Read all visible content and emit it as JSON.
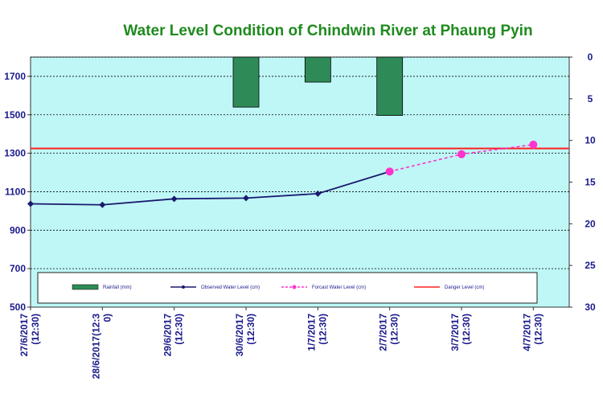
{
  "chart_data": {
    "title": "Water Level Condition  of Chindwin River at Phaung Pyin",
    "type": "line",
    "categories": [
      "27/6/2017\n(12:30)",
      "28/6/2017(12:3\n0)",
      "29/6/2017\n(12:30)",
      "30/6/2017\n(12:30)",
      "1/7/2017\n(12:30)",
      "2/7/2017\n(12:30)",
      "3/7/2017\n(12:30)",
      "4/7/2017\n(12:30)"
    ],
    "y_left": {
      "ylim": [
        500,
        1800
      ],
      "ticks": [
        500,
        700,
        900,
        1100,
        1300,
        1500,
        1700
      ]
    },
    "y_right": {
      "ylim": [
        0,
        30
      ],
      "ticks": [
        0,
        5,
        10,
        15,
        20,
        25,
        30
      ],
      "inverted": true
    },
    "series": [
      {
        "name": "Rainfall (mm)",
        "type": "bar",
        "axis": "right",
        "color": "#2e8b57",
        "values": [
          null,
          null,
          null,
          6.0,
          3.0,
          7.0,
          null,
          null
        ]
      },
      {
        "name": "Observed Water Level (cm)",
        "type": "line",
        "axis": "left",
        "color": "#1a1a6e",
        "values": [
          1037,
          1032,
          1063,
          1067,
          1090,
          1205,
          null,
          null
        ]
      },
      {
        "name": "Forcast Water Level (cm)",
        "type": "line",
        "axis": "left",
        "color": "#ff33cc",
        "dashed": true,
        "values": [
          null,
          null,
          null,
          null,
          null,
          1205,
          1295,
          1345
        ]
      },
      {
        "name": "Danger Level (cm)",
        "type": "hline",
        "axis": "left",
        "color": "#ff2020",
        "value": 1325
      }
    ],
    "grid": true,
    "legend_position": "bottom-inside",
    "plot_background": "#bff7f7"
  }
}
